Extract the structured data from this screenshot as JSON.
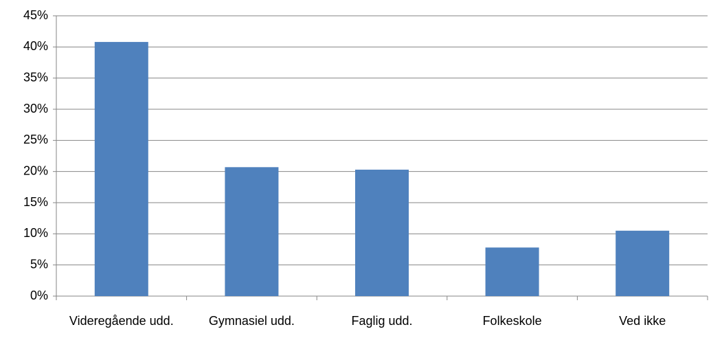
{
  "chart_data": {
    "type": "bar",
    "categories": [
      "Videregående udd.",
      "Gymnasiel udd.",
      "Faglig udd.",
      "Folkeskole",
      "Ved ikke"
    ],
    "values": [
      40.8,
      20.7,
      20.3,
      7.8,
      10.5
    ],
    "color": "#4f81bd",
    "ylim": [
      0,
      45
    ],
    "yticks": [
      {
        "value": 0,
        "label": "0%"
      },
      {
        "value": 5,
        "label": "5%"
      },
      {
        "value": 10,
        "label": "10%"
      },
      {
        "value": 15,
        "label": "15%"
      },
      {
        "value": 20,
        "label": "20%"
      },
      {
        "value": 25,
        "label": "25%"
      },
      {
        "value": 30,
        "label": "30%"
      },
      {
        "value": 35,
        "label": "35%"
      },
      {
        "value": 40,
        "label": "40%"
      },
      {
        "value": 45,
        "label": "45%"
      }
    ],
    "grid": true
  }
}
